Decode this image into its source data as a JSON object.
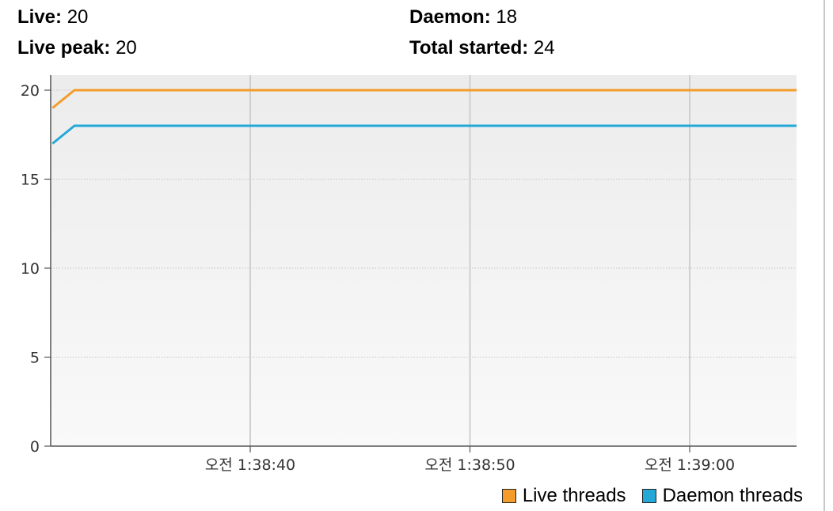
{
  "stats": {
    "live_label": "Live:",
    "live_value": "20",
    "peak_label": "Live peak:",
    "peak_value": "20",
    "daemon_label": "Daemon:",
    "daemon_value": "18",
    "total_label": "Total started:",
    "total_value": "24"
  },
  "colors": {
    "live": "#f39c2c",
    "daemon": "#24a8d8",
    "plot_bg_top": "#ececec",
    "plot_bg_bottom": "#f9f9f9",
    "grid": "#cfcfcf"
  },
  "chart_data": {
    "type": "line",
    "title": "",
    "xlabel": "",
    "ylabel": "",
    "ylim": [
      0,
      20
    ],
    "yticks": [
      0,
      5,
      10,
      15,
      20
    ],
    "xlim": [
      "오전 1:38:31",
      "오전 1:39:05"
    ],
    "xticks": [
      "오전 1:38:40",
      "오전 1:38:50",
      "오전 1:39:00"
    ],
    "grid": true,
    "legend_position": "bottom-right",
    "series": [
      {
        "name": "Live threads",
        "color": "#f39c2c",
        "x": [
          "오전 1:38:31",
          "오전 1:38:32",
          "오전 1:38:40",
          "오전 1:38:50",
          "오전 1:39:00",
          "오전 1:39:05"
        ],
        "values": [
          19,
          20,
          20,
          20,
          20,
          20
        ]
      },
      {
        "name": "Daemon threads",
        "color": "#24a8d8",
        "x": [
          "오전 1:38:31",
          "오전 1:38:32",
          "오전 1:38:40",
          "오전 1:38:50",
          "오전 1:39:00",
          "오전 1:39:05"
        ],
        "values": [
          17,
          18,
          18,
          18,
          18,
          18
        ]
      }
    ]
  }
}
